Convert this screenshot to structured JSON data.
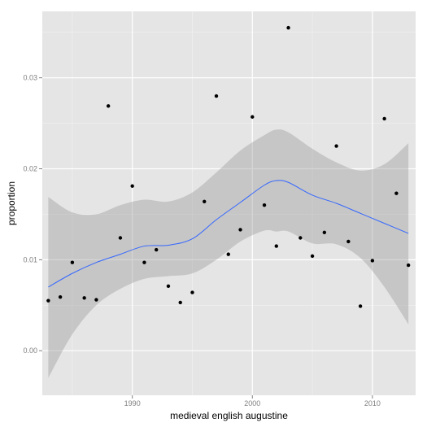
{
  "chart_data": {
    "type": "scatter",
    "title": "",
    "xlabel": "medieval english augustine",
    "ylabel": "proportion",
    "xlim": [
      1982.5,
      2013.6
    ],
    "ylim": [
      -0.0049,
      0.0373
    ],
    "x_ticks": [
      1990,
      2000,
      2010
    ],
    "x_tick_labels": [
      "1990",
      "2000",
      "2010"
    ],
    "y_ticks": [
      0.0,
      0.01,
      0.02,
      0.03
    ],
    "y_tick_labels": [
      "0.00",
      "0.01",
      "0.02",
      "0.03"
    ],
    "grid": true,
    "legend": "none",
    "colors": {
      "panel": "#e5e5e5",
      "grid_major": "#ffffff",
      "grid_minor": "#f2f2f2",
      "points": "#000000",
      "smooth_line": "#3366ff",
      "ribbon": "#999999"
    },
    "series": [
      {
        "type": "scatter",
        "x": [
          1983,
          1984,
          1985,
          1986,
          1987,
          1988,
          1989,
          1990,
          1991,
          1992,
          1993,
          1994,
          1995,
          1996,
          1997,
          1998,
          1999,
          2000,
          2001,
          2002,
          2003,
          2004,
          2005,
          2006,
          2007,
          2008,
          2009,
          2010,
          2011,
          2012,
          2013
        ],
        "y": [
          0.0055,
          0.0059,
          0.0097,
          0.0058,
          0.0056,
          0.0269,
          0.0124,
          0.0181,
          0.0097,
          0.0111,
          0.0071,
          0.0053,
          0.0064,
          0.0164,
          0.028,
          0.0106,
          0.0133,
          0.0257,
          0.016,
          0.0115,
          0.0355,
          0.0124,
          0.0104,
          0.013,
          0.0225,
          0.012,
          0.0049,
          0.0099,
          0.0255,
          0.0173,
          0.0094
        ]
      },
      {
        "type": "smooth",
        "x": [
          1983,
          1985,
          1987,
          1989,
          1991,
          1993,
          1995,
          1997,
          1999,
          2001,
          2002,
          2003,
          2005,
          2007,
          2009,
          2011,
          2013
        ],
        "y": [
          0.007,
          0.0085,
          0.0097,
          0.0106,
          0.0115,
          0.0116,
          0.0123,
          0.0144,
          0.0163,
          0.0182,
          0.0187,
          0.0185,
          0.0171,
          0.0162,
          0.0151,
          0.014,
          0.0129
        ],
        "ci_upper": [
          0.0169,
          0.0152,
          0.015,
          0.016,
          0.0166,
          0.0164,
          0.0174,
          0.0196,
          0.022,
          0.0237,
          0.0243,
          0.024,
          0.0222,
          0.0207,
          0.0198,
          0.0205,
          0.0228
        ],
        "ci_lower": [
          -0.003,
          0.0018,
          0.005,
          0.0068,
          0.0079,
          0.0082,
          0.0085,
          0.01,
          0.012,
          0.0132,
          0.0131,
          0.0131,
          0.0118,
          0.0117,
          0.0102,
          0.007,
          0.0029
        ]
      }
    ]
  }
}
